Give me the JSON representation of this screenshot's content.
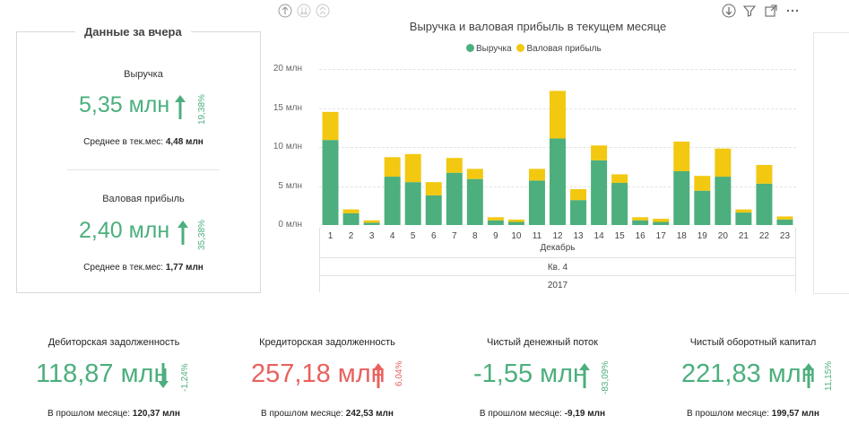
{
  "yesterday": {
    "title": "Данные за вчера",
    "revenue": {
      "label": "Выручка",
      "value": "5,35 млн",
      "change": "19,38%",
      "avg_label": "Среднее в тек.мес:",
      "avg_value": "4,48 млн"
    },
    "gross_profit": {
      "label": "Валовая прибыль",
      "value": "2,40 млн",
      "change": "35,38%",
      "avg_label": "Среднее в тек.мес:",
      "avg_value": "1,77 млн"
    }
  },
  "colors": {
    "revenue": "#4caf7d",
    "profit": "#f2c811",
    "negative": "#e8615e"
  },
  "header_icons": [
    "drill-up-icon",
    "drill-down-icon",
    "expand-all-icon",
    "focus-down-icon",
    "filter-icon",
    "focus-mode-icon",
    "more-options-icon"
  ],
  "chart_data": {
    "type": "bar",
    "stacked": true,
    "title": "Выручка и валовая прибыль в текущем месяце",
    "categories": [
      "1",
      "2",
      "3",
      "4",
      "5",
      "6",
      "7",
      "8",
      "9",
      "10",
      "11",
      "12",
      "13",
      "14",
      "15",
      "16",
      "17",
      "18",
      "19",
      "20",
      "21",
      "22",
      "23"
    ],
    "series": [
      {
        "name": "Выручка",
        "values": [
          10.9,
          1.5,
          0.3,
          6.2,
          5.5,
          3.8,
          6.7,
          5.9,
          0.6,
          0.4,
          5.7,
          11.1,
          3.2,
          8.3,
          5.4,
          0.6,
          0.4,
          6.9,
          4.4,
          6.2,
          1.6,
          5.3,
          0.7
        ]
      },
      {
        "name": "Валовая прибыль",
        "values": [
          3.6,
          0.5,
          0.3,
          2.5,
          3.6,
          1.7,
          1.9,
          1.3,
          0.4,
          0.3,
          1.5,
          6.1,
          1.4,
          1.9,
          1.1,
          0.4,
          0.4,
          3.8,
          1.9,
          3.6,
          0.4,
          2.4,
          0.4
        ]
      }
    ],
    "ylabels": [
      "0 млн",
      "5 млн",
      "10 млн",
      "15 млн",
      "20 млн"
    ],
    "ylim": [
      0,
      20
    ],
    "xaxis_levels": [
      "Декабрь",
      "Кв. 4",
      "2017"
    ]
  },
  "bottom": [
    {
      "label": "Дебиторская задолженность",
      "value": "118,87 млн",
      "change": "-1,24%",
      "prev_label": "В прошлом месяце:",
      "prev_value": "120,37 млн"
    },
    {
      "label": "Кредиторская задолженность",
      "value": "257,18 млн",
      "change": "6,04%",
      "prev_label": "В прошлом месяце:",
      "prev_value": "242,53 млн"
    },
    {
      "label": "Чистый денежный поток",
      "value": "-1,55 млн",
      "change": "-83,09%",
      "prev_label": "В прошлом месяце:",
      "prev_value": "-9,19 млн"
    },
    {
      "label": "Чистый оборотный капитал",
      "value": "221,83 млн",
      "change": "11,15%",
      "prev_label": "В прошлом месяце:",
      "prev_value": "199,57 млн"
    }
  ]
}
